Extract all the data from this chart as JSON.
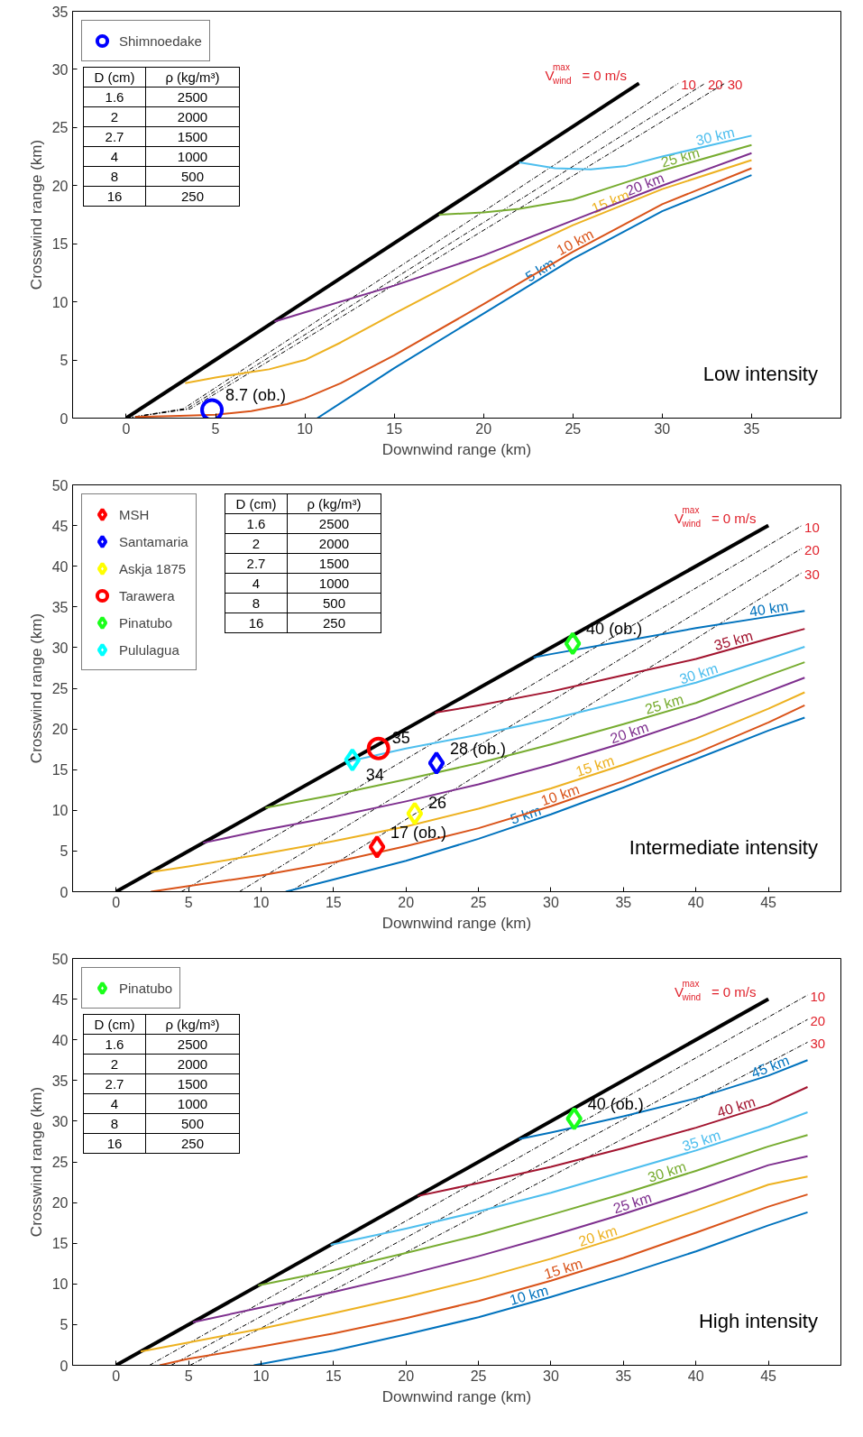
{
  "chart_data": [
    {
      "type": "line",
      "xlabel": "Downwind range (km)",
      "ylabel": "Crosswind range (km)",
      "xlim": [
        -3,
        40
      ],
      "ylim": [
        0,
        35
      ],
      "xticks": [
        0,
        5,
        10,
        15,
        20,
        25,
        30,
        35
      ],
      "yticks": [
        0,
        5,
        10,
        15,
        20,
        25,
        30,
        35
      ],
      "grid": false,
      "legend": "top left",
      "annotations": [
        "Low intensity",
        "D (cm)",
        "ρ (kg/m³)",
        "1.6",
        "2500",
        "2",
        "2000",
        "2.7",
        "1500",
        "4",
        "1000",
        "8",
        "500",
        "16",
        "250",
        {
          "text": "8.7 (ob.)",
          "x": 4.8,
          "y": 0.7
        }
      ],
      "series": [
        {
          "name": "V$^{max}$$_{wind}$ = 0 m/s",
          "color": "#000000",
          "line_style": "solid",
          "x": [
            0,
            28.7
          ],
          "values": [
            0,
            28.8
          ]
        },
        {
          "name": "10",
          "color": "#000000",
          "line_style": "dashdot",
          "x": [
            0,
            3.2,
            30.9
          ],
          "values": [
            0,
            0.8,
            28.8
          ]
        },
        {
          "name": "20",
          "color": "#000000",
          "line_style": "dashdot",
          "x": [
            0,
            3.4,
            32.4
          ],
          "values": [
            0,
            0.8,
            28.8
          ]
        },
        {
          "name": "30",
          "color": "#000000",
          "line_style": "dashdot",
          "x": [
            0,
            3.6,
            33.5
          ],
          "values": [
            0,
            0.8,
            28.8
          ]
        },
        {
          "name": "5 km",
          "color": "#0072bd",
          "x": [
            10.7,
            12.5,
            15,
            20,
            25,
            30,
            35
          ],
          "values": [
            0,
            1.8,
            4.3,
            9.0,
            13.7,
            17.8,
            20.9
          ]
        },
        {
          "name": "10 km",
          "color": "#d95319",
          "x": [
            0.5,
            3,
            5,
            7,
            9,
            10,
            12,
            15,
            20,
            25,
            30,
            35
          ],
          "values": [
            0.1,
            0.2,
            0.3,
            0.6,
            1.2,
            1.7,
            3.0,
            5.4,
            9.8,
            14.3,
            18.4,
            21.5
          ]
        },
        {
          "name": "15 km",
          "color": "#edb120",
          "x": [
            3.3,
            5,
            8,
            10,
            12,
            15,
            20,
            25,
            30,
            35
          ],
          "values": [
            3.0,
            3.5,
            4.2,
            5.0,
            6.5,
            9.0,
            13.0,
            16.6,
            19.7,
            22.2
          ]
        },
        {
          "name": "20 km",
          "color": "#7e2f8e",
          "x": [
            8.3,
            10,
            15,
            20,
            25,
            30,
            35
          ],
          "values": [
            8.3,
            9.1,
            11.4,
            14.0,
            17.0,
            20.0,
            22.8
          ]
        },
        {
          "name": "25 km",
          "color": "#77ac30",
          "x": [
            17.5,
            20,
            22,
            25,
            28,
            30,
            35
          ],
          "values": [
            17.5,
            17.7,
            18.0,
            18.8,
            20.3,
            21.3,
            23.5
          ]
        },
        {
          "name": "30 km",
          "color": "#4dbeee",
          "x": [
            22,
            24,
            26,
            28,
            30,
            35
          ],
          "values": [
            22,
            21.5,
            21.4,
            21.7,
            22.5,
            24.3
          ]
        },
        {
          "name": "Shimnoedake",
          "type": "scatter",
          "marker": "circle",
          "color": "#0000ff",
          "x": [
            4.8
          ],
          "values": [
            0.7
          ]
        }
      ]
    },
    {
      "type": "line",
      "xlabel": "Downwind range (km)",
      "ylabel": "Crosswind range (km)",
      "xlim": [
        -3,
        50
      ],
      "ylim": [
        0,
        50
      ],
      "xticks": [
        0,
        5,
        10,
        15,
        20,
        25,
        30,
        35,
        40,
        45
      ],
      "yticks": [
        0,
        5,
        10,
        15,
        20,
        25,
        30,
        35,
        40,
        45,
        50
      ],
      "grid": false,
      "legend": "top left",
      "annotations": [
        "Intermediate intensity",
        "D (cm)",
        "ρ (kg/m³)",
        "1.6",
        "2500",
        "2",
        "2000",
        "2.7",
        "1500",
        "4",
        "1000",
        "8",
        "500",
        "16",
        "250",
        {
          "text": "17 (ob.)",
          "x": 18,
          "y": 5.5
        },
        {
          "text": "28 (ob.)",
          "x": 22.1,
          "y": 15.8
        },
        {
          "text": "26",
          "x": 20.6,
          "y": 9.6
        },
        {
          "text": "35",
          "x": 18.1,
          "y": 17.6
        },
        {
          "text": "40 (ob.)",
          "x": 31.5,
          "y": 30.5
        },
        {
          "text": "34",
          "x": 16.3,
          "y": 16.2
        }
      ],
      "series": [
        {
          "name": "V$^{max}$$_{wind}$ = 0 m/s",
          "color": "#000000",
          "line_style": "solid",
          "x": [
            0,
            45
          ],
          "values": [
            0,
            45
          ]
        },
        {
          "name": "10",
          "color": "#000000",
          "line_style": "dashdot",
          "x": [
            4.5,
            47.3
          ],
          "values": [
            0,
            45
          ]
        },
        {
          "name": "20",
          "color": "#000000",
          "line_style": "dashdot",
          "x": [
            8.5,
            47.3
          ],
          "values": [
            0,
            42.2
          ]
        },
        {
          "name": "30",
          "color": "#000000",
          "line_style": "dashdot",
          "x": [
            12,
            47.3
          ],
          "values": [
            0,
            39.2
          ]
        },
        {
          "name": "5 km",
          "color": "#0072bd",
          "x": [
            11.7,
            15,
            20,
            25,
            30,
            35,
            40,
            45,
            47.5
          ],
          "values": [
            0,
            1.5,
            3.8,
            6.5,
            9.5,
            12.8,
            16.3,
            19.8,
            21.4
          ]
        },
        {
          "name": "10 km",
          "color": "#d95319",
          "x": [
            2.4,
            5,
            10,
            15,
            20,
            25,
            30,
            35,
            40,
            45,
            47.5
          ],
          "values": [
            0,
            0.7,
            2,
            3.6,
            5.6,
            7.8,
            10.5,
            13.6,
            17,
            20.8,
            22.9
          ]
        },
        {
          "name": "15 km",
          "color": "#edb120",
          "x": [
            2.4,
            5,
            10,
            15,
            20,
            25,
            30,
            35,
            40,
            45,
            47.5
          ],
          "values": [
            2.4,
            3.1,
            4.6,
            6.2,
            8.0,
            10.2,
            12.7,
            15.6,
            18.8,
            22.5,
            24.5
          ]
        },
        {
          "name": "20 km",
          "color": "#7e2f8e",
          "x": [
            6,
            10,
            15,
            20,
            25,
            30,
            35,
            40,
            45,
            47.5
          ],
          "values": [
            6,
            7.5,
            9.2,
            11.1,
            13.2,
            15.6,
            18.3,
            21.3,
            24.6,
            26.3
          ]
        },
        {
          "name": "25 km",
          "color": "#77ac30",
          "x": [
            10.3,
            15,
            20,
            25,
            30,
            35,
            40,
            45,
            47.5
          ],
          "values": [
            10.3,
            11.9,
            13.8,
            15.8,
            18.1,
            20.6,
            23.2,
            26.6,
            28.2
          ]
        },
        {
          "name": "30 km",
          "color": "#4dbeee",
          "x": [
            16,
            20,
            25,
            30,
            35,
            40,
            45,
            47.5
          ],
          "values": [
            16,
            17.6,
            19.3,
            21.2,
            23.4,
            25.7,
            28.6,
            30.1
          ]
        },
        {
          "name": "35 km",
          "color": "#a2142f",
          "x": [
            22,
            25,
            30,
            35,
            40,
            45,
            47.5
          ],
          "values": [
            22,
            22.9,
            24.6,
            26.6,
            28.6,
            31.1,
            32.3
          ]
        },
        {
          "name": "40 km",
          "color": "#0072bd",
          "x": [
            28.8,
            30,
            35,
            40,
            45,
            47.5
          ],
          "values": [
            28.8,
            29.2,
            30.8,
            32.4,
            33.8,
            34.5
          ]
        },
        {
          "name": "MSH",
          "type": "scatter",
          "marker": "diamond",
          "color": "#ff0000",
          "x": [
            18
          ],
          "values": [
            5.5
          ]
        },
        {
          "name": "Santamaria",
          "type": "scatter",
          "marker": "diamond",
          "color": "#0000ff",
          "x": [
            22.1
          ],
          "values": [
            15.8
          ]
        },
        {
          "name": "Askja 1875",
          "type": "scatter",
          "marker": "diamond",
          "color": "#ffff00",
          "x": [
            20.6
          ],
          "values": [
            9.6
          ]
        },
        {
          "name": "Tarawera",
          "type": "scatter",
          "marker": "circle",
          "color": "#ff0000",
          "x": [
            18.1
          ],
          "values": [
            17.6
          ]
        },
        {
          "name": "Pinatubo",
          "type": "scatter",
          "marker": "diamond",
          "color": "#1aff1a",
          "x": [
            31.5
          ],
          "values": [
            30.5
          ]
        },
        {
          "name": "Pululagua",
          "type": "scatter",
          "marker": "diamond",
          "color": "#00ffff",
          "x": [
            16.3
          ],
          "values": [
            16.2
          ]
        }
      ]
    },
    {
      "type": "line",
      "xlabel": "Downwind range (km)",
      "ylabel": "Crosswind range (km)",
      "xlim": [
        -3,
        50
      ],
      "ylim": [
        0,
        50
      ],
      "xticks": [
        0,
        5,
        10,
        15,
        20,
        25,
        30,
        35,
        40,
        45
      ],
      "yticks": [
        0,
        5,
        10,
        15,
        20,
        25,
        30,
        35,
        40,
        45,
        50
      ],
      "grid": false,
      "legend": "top left",
      "annotations": [
        "High intensity",
        "D (cm)",
        "ρ (kg/m³)",
        "1.6",
        "2500",
        "2",
        "2000",
        "2.7",
        "1500",
        "4",
        "1000",
        "8",
        "500",
        "16",
        "250",
        {
          "text": "40 (ob.)",
          "x": 31.6,
          "y": 30.3
        }
      ],
      "series": [
        {
          "name": "V$^{max}$$_{wind}$ = 0 m/s",
          "color": "#000000",
          "line_style": "solid",
          "x": [
            0,
            45
          ],
          "values": [
            0,
            45
          ]
        },
        {
          "name": "10",
          "color": "#000000",
          "line_style": "dashdot",
          "x": [
            2.3,
            47.7
          ],
          "values": [
            0,
            45.5
          ]
        },
        {
          "name": "20",
          "color": "#000000",
          "line_style": "dashdot",
          "x": [
            3.8,
            47.7
          ],
          "values": [
            0,
            42.5
          ]
        },
        {
          "name": "30",
          "color": "#000000",
          "line_style": "dashdot",
          "x": [
            5.1,
            47.7
          ],
          "values": [
            0,
            39.7
          ]
        },
        {
          "name": "10 km",
          "color": "#0072bd",
          "x": [
            9.5,
            15,
            20,
            25,
            30,
            35,
            40,
            45,
            47.7
          ],
          "values": [
            0,
            1.8,
            3.8,
            5.9,
            8.4,
            11.1,
            14.0,
            17.2,
            18.8
          ]
        },
        {
          "name": "15 km",
          "color": "#d95319",
          "x": [
            3,
            5,
            10,
            15,
            20,
            25,
            30,
            35,
            40,
            45,
            47.7
          ],
          "values": [
            0,
            0.8,
            2.3,
            3.9,
            5.8,
            7.9,
            10.4,
            13.2,
            16.3,
            19.5,
            21
          ]
        },
        {
          "name": "20 km",
          "color": "#edb120",
          "x": [
            1.7,
            5,
            10,
            15,
            20,
            25,
            30,
            35,
            40,
            45,
            47.7
          ],
          "values": [
            1.7,
            2.8,
            4.5,
            6.4,
            8.4,
            10.6,
            13.1,
            15.9,
            19,
            22.2,
            23.2
          ]
        },
        {
          "name": "25 km",
          "color": "#7e2f8e",
          "x": [
            5.3,
            10,
            15,
            20,
            25,
            30,
            35,
            40,
            45,
            47.7
          ],
          "values": [
            5.3,
            7.1,
            9.0,
            11.1,
            13.4,
            15.9,
            18.6,
            21.5,
            24.6,
            25.7
          ]
        },
        {
          "name": "30 km",
          "color": "#77ac30",
          "x": [
            9.8,
            15,
            20,
            25,
            30,
            35,
            40,
            45,
            47.7
          ],
          "values": [
            9.8,
            11.7,
            13.8,
            16,
            18.5,
            21.1,
            23.9,
            26.9,
            28.3
          ]
        },
        {
          "name": "35 km",
          "color": "#4dbeee",
          "x": [
            14.8,
            20,
            25,
            30,
            35,
            40,
            45,
            47.7
          ],
          "values": [
            14.8,
            16.8,
            18.9,
            21.2,
            23.8,
            26.4,
            29.3,
            31.1
          ]
        },
        {
          "name": "40 km",
          "color": "#a2142f",
          "x": [
            20.8,
            25,
            30,
            35,
            40,
            45,
            47.7
          ],
          "values": [
            20.8,
            22.4,
            24.4,
            26.7,
            29.2,
            32.0,
            34.2
          ]
        },
        {
          "name": "45 km",
          "color": "#0072bd",
          "x": [
            27.8,
            30,
            35,
            40,
            45,
            47.7
          ],
          "values": [
            27.8,
            28.6,
            30.6,
            32.8,
            35.6,
            37.5
          ]
        },
        {
          "name": "Pinatubo",
          "type": "scatter",
          "marker": "diamond",
          "color": "#1aff1a",
          "x": [
            31.6
          ],
          "values": [
            30.3
          ]
        }
      ]
    }
  ]
}
